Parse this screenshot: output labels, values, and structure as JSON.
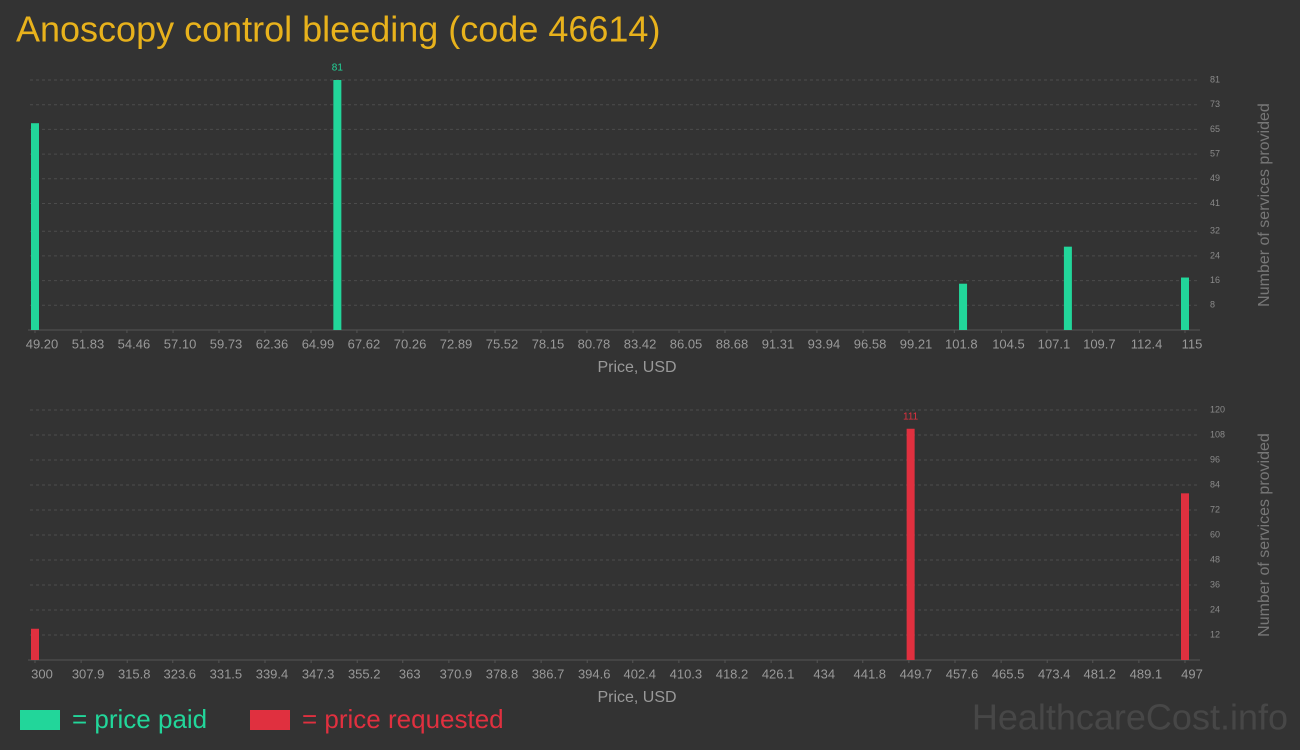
{
  "title": "Anoscopy control bleeding (code 46614)",
  "watermark": "HealthcareCost.info",
  "chart_data": [
    {
      "type": "bar",
      "x": [
        49.2,
        66.5,
        102.3,
        108.3,
        115
      ],
      "series": [
        {
          "name": "= price paid",
          "color": "#22d69a",
          "values": [
            67,
            81,
            15,
            27,
            17
          ]
        }
      ],
      "xlim": [
        49.2,
        115
      ],
      "xticks": [
        {
          "value": 49.2,
          "label": "49.20"
        },
        51.83,
        54.46,
        {
          "value": 57.1,
          "label": "57.10"
        },
        59.73,
        62.36,
        64.99,
        67.62,
        70.26,
        72.89,
        75.52,
        78.15,
        80.78,
        83.42,
        86.05,
        88.68,
        91.31,
        93.94,
        96.58,
        99.21,
        101.8,
        104.5,
        107.1,
        109.7,
        112.4,
        115
      ],
      "ylim": [
        0,
        81
      ],
      "yticks": [
        8,
        16,
        24,
        32,
        41,
        49,
        57,
        65,
        73,
        81
      ],
      "xlabel": "Price, USD",
      "ylabel": "Number of services provided",
      "grid": true
    },
    {
      "type": "bar",
      "x": [
        300,
        450,
        497
      ],
      "series": [
        {
          "name": "= price requested",
          "color": "#e0303f",
          "values": [
            15,
            111,
            80
          ]
        }
      ],
      "xlim": [
        300,
        497
      ],
      "xticks": [
        300,
        307.9,
        315.8,
        323.6,
        331.5,
        339.4,
        347.3,
        355.2,
        363,
        370.9,
        378.8,
        386.7,
        394.6,
        402.4,
        410.3,
        418.2,
        426.1,
        434,
        441.8,
        449.7,
        457.6,
        465.5,
        473.4,
        481.2,
        489.1,
        497
      ],
      "ylim": [
        0,
        120
      ],
      "yticks": [
        12,
        24,
        36,
        48,
        60,
        72,
        84,
        96,
        108,
        120
      ],
      "xlabel": "Price, USD",
      "ylabel": "Number of services provided",
      "grid": true
    }
  ]
}
